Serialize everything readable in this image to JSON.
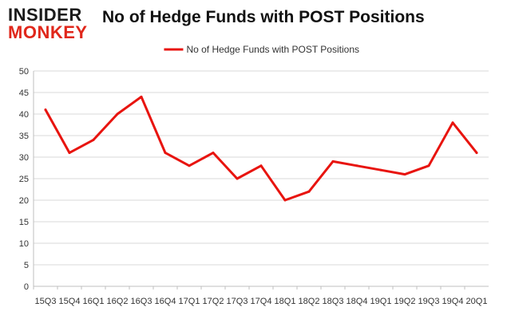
{
  "brand": {
    "line1": "INSIDER",
    "line2": "MONKEY"
  },
  "title": "No of Hedge Funds with POST Positions",
  "colors": {
    "line": "#e8140f",
    "grid": "#d9d9d9",
    "brand_red": "#e0271b",
    "brand_dark": "#1a1a1a"
  },
  "chart_data": {
    "type": "line",
    "title": "No of Hedge Funds with POST Positions",
    "xlabel": "",
    "ylabel": "",
    "categories": [
      "15Q3",
      "15Q4",
      "16Q1",
      "16Q2",
      "16Q3",
      "16Q4",
      "17Q1",
      "17Q2",
      "17Q3",
      "17Q4",
      "18Q1",
      "18Q2",
      "18Q3",
      "18Q4",
      "19Q1",
      "19Q2",
      "19Q3",
      "19Q4",
      "20Q1"
    ],
    "series": [
      {
        "name": "No of Hedge Funds with POST Positions",
        "values": [
          41,
          31,
          34,
          40,
          44,
          31,
          28,
          31,
          25,
          28,
          20,
          22,
          29,
          28,
          27,
          26,
          28,
          38,
          31
        ]
      }
    ],
    "ylim": [
      0,
      50
    ],
    "yticks": [
      "0",
      "5",
      "10",
      "15",
      "20",
      "25",
      "30",
      "35",
      "40",
      "45",
      "50"
    ],
    "grid": true,
    "legend_position": "top-center"
  }
}
